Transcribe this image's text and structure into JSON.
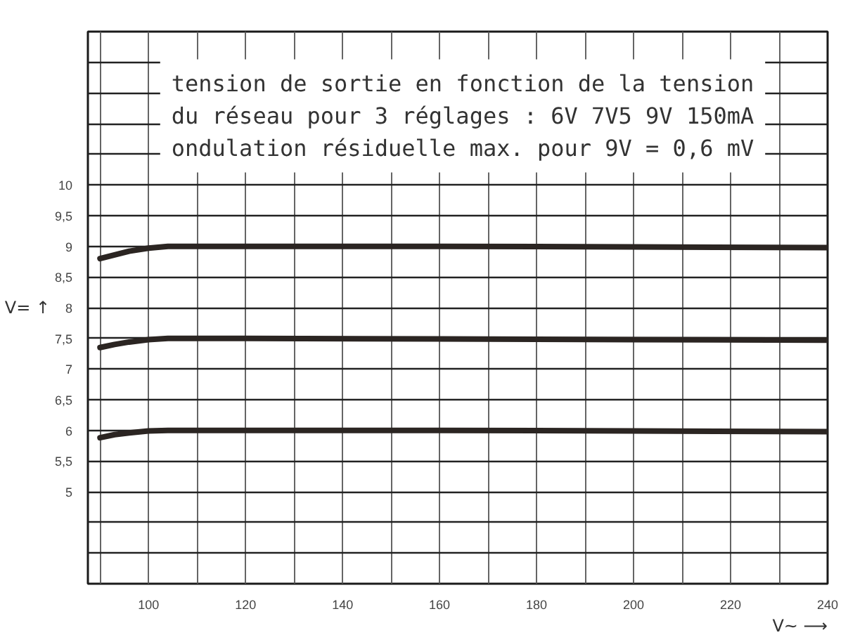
{
  "chart_data": {
    "type": "line",
    "title": "tension de sortie en fonction de la tension\ndu réseau pour 3 réglages : 6V 7V5 9V 150mA\nondulation résiduelle max. pour 9V = 0,6 mV",
    "xlabel": "V~ ⟶",
    "ylabel": "V= ↑",
    "x": [
      90,
      93,
      96,
      100,
      104,
      120,
      160,
      200,
      240
    ],
    "series": [
      {
        "color": "#2b2522",
        "values": [
          8.8,
          8.86,
          8.92,
          8.97,
          9.0,
          9.0,
          9.0,
          8.99,
          8.98
        ]
      },
      {
        "color": "#2b2522",
        "values": [
          7.35,
          7.4,
          7.44,
          7.48,
          7.5,
          7.5,
          7.49,
          7.48,
          7.47
        ]
      },
      {
        "color": "#2b2522",
        "values": [
          5.88,
          5.93,
          5.96,
          5.99,
          6.0,
          6.0,
          6.0,
          5.99,
          5.98
        ]
      }
    ],
    "xlim": [
      87.5,
      240
    ],
    "ylim": [
      3.5,
      12.5
    ],
    "xticks": [
      {
        "value": 90,
        "label": null
      },
      100,
      {
        "value": 110,
        "label": null
      },
      120,
      {
        "value": 130,
        "label": null
      },
      140,
      {
        "value": 150,
        "label": null
      },
      160,
      {
        "value": 170,
        "label": null
      },
      180,
      {
        "value": 190,
        "label": null
      },
      200,
      {
        "value": 210,
        "label": null
      },
      220,
      {
        "value": 230,
        "label": null
      },
      240
    ],
    "yticks": [
      {
        "value": 4,
        "label": null
      },
      {
        "value": 4.5,
        "label": null
      },
      5,
      {
        "value": 5.5,
        "label": "5,5"
      },
      6,
      {
        "value": 6.5,
        "label": "6,5"
      },
      7,
      {
        "value": 7.5,
        "label": "7,5"
      },
      8,
      {
        "value": 8.5,
        "label": "8,5"
      },
      9,
      {
        "value": 9.5,
        "label": "9,5"
      },
      10,
      {
        "value": 10.5,
        "label": null
      },
      {
        "value": 11,
        "label": null
      },
      {
        "value": 11.5,
        "label": null
      },
      {
        "value": 12,
        "label": null
      }
    ],
    "grid": true
  }
}
